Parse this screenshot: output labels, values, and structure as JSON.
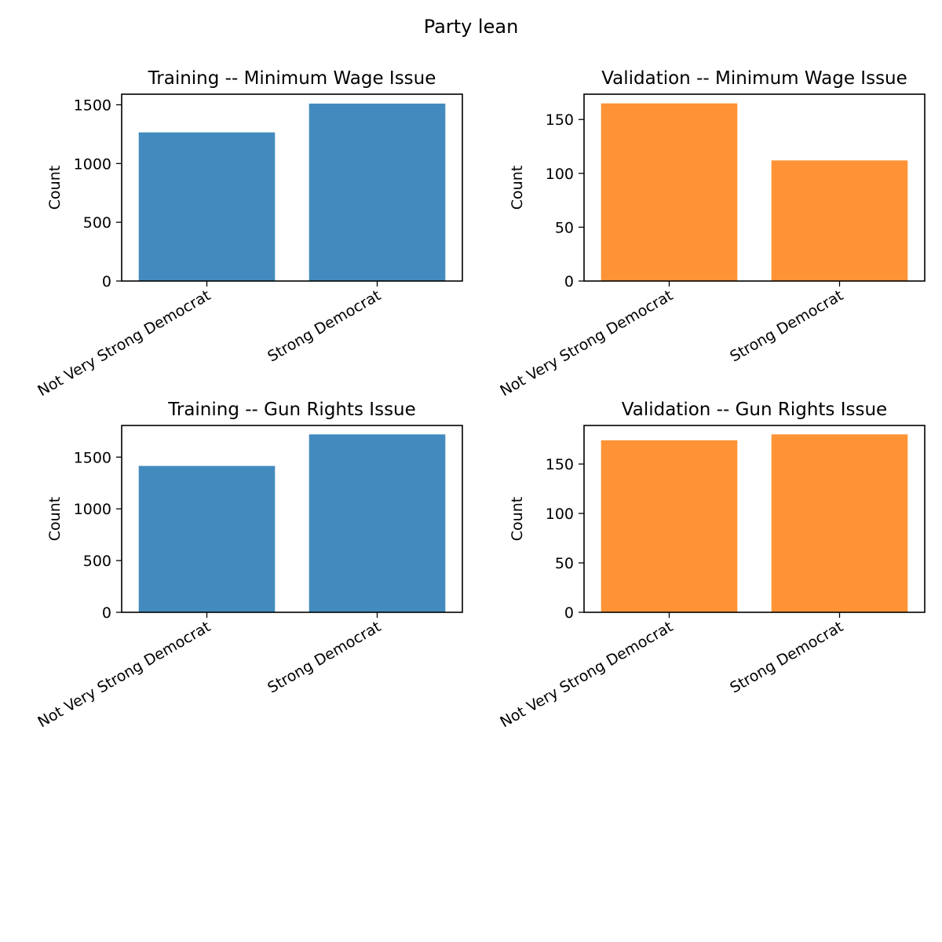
{
  "figure": {
    "suptitle": "Party lean"
  },
  "chart_data": [
    {
      "type": "bar",
      "title": "Training -- Minimum Wage Issue",
      "xlabel": "",
      "ylabel": "Count",
      "categories": [
        "Not Very Strong Democrat",
        "Strong Democrat"
      ],
      "values": [
        1265,
        1510
      ],
      "ylim": [
        0,
        1590
      ],
      "yticks": [
        0,
        500,
        1000,
        1500
      ],
      "color": "#438bbf",
      "grid": false
    },
    {
      "type": "bar",
      "title": "Validation -- Minimum Wage Issue",
      "xlabel": "",
      "ylabel": "Count",
      "categories": [
        "Not Very Strong Democrat",
        "Strong Democrat"
      ],
      "values": [
        165,
        112
      ],
      "ylim": [
        0,
        173.5
      ],
      "yticks": [
        0,
        50,
        100,
        150
      ],
      "color": "#ff9335",
      "grid": false
    },
    {
      "type": "bar",
      "title": "Training -- Gun Rights Issue",
      "xlabel": "",
      "ylabel": "Count",
      "categories": [
        "Not Very Strong Democrat",
        "Strong Democrat"
      ],
      "values": [
        1415,
        1720
      ],
      "ylim": [
        0,
        1806
      ],
      "yticks": [
        0,
        500,
        1000,
        1500
      ],
      "color": "#438bbf",
      "grid": false
    },
    {
      "type": "bar",
      "title": "Validation -- Gun Rights Issue",
      "xlabel": "",
      "ylabel": "Count",
      "categories": [
        "Not Very Strong Democrat",
        "Strong Democrat"
      ],
      "values": [
        174,
        180
      ],
      "ylim": [
        0,
        189
      ],
      "yticks": [
        0,
        50,
        100,
        150
      ],
      "color": "#ff9335",
      "grid": false
    }
  ]
}
